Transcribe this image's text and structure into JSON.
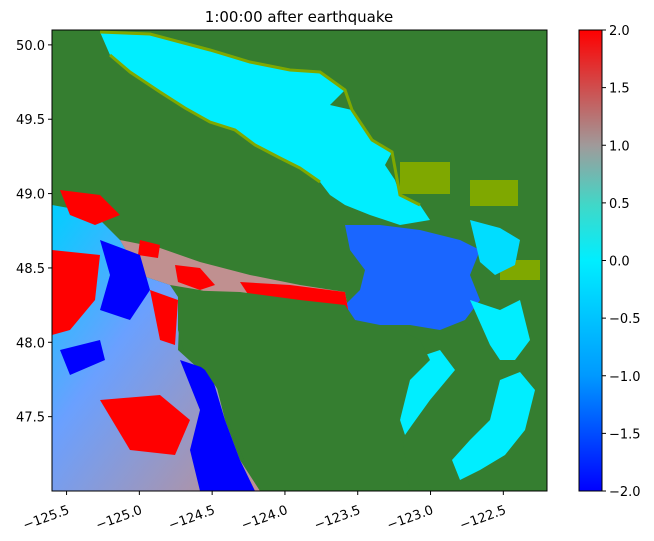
{
  "chart_data": {
    "type": "heatmap",
    "title": "1:00:00 after earthquake",
    "xlabel": "",
    "ylabel": "",
    "xlim": [
      -125.6,
      -122.2
    ],
    "ylim": [
      47.0,
      50.1
    ],
    "x_ticks": [
      -125.5,
      -125.0,
      -124.5,
      -124.0,
      -123.5,
      -123.0,
      -122.5
    ],
    "x_tick_labels": [
      "−125.5",
      "−125.0",
      "−124.5",
      "−124.0",
      "−123.5",
      "−123.0",
      "−122.5"
    ],
    "y_ticks": [
      47.5,
      48.0,
      48.5,
      49.0,
      49.5,
      50.0
    ],
    "y_tick_labels": [
      "47.5",
      "48.0",
      "48.5",
      "49.0",
      "49.5",
      "50.0"
    ],
    "grid": false,
    "colorbar": {
      "min": -2.0,
      "max": 2.0,
      "ticks": [
        -2.0,
        -1.5,
        -1.0,
        -0.5,
        0.0,
        0.5,
        1.0,
        1.5,
        2.0
      ],
      "tick_labels": [
        "−2.0",
        "−1.5",
        "−1.0",
        "−0.5",
        "0.0",
        "0.5",
        "1.0",
        "1.5",
        "2.0"
      ],
      "colors": [
        "#0000ff",
        "#00aaff",
        "#00eeff",
        "#40e0d0",
        "#999999",
        "#ff0000"
      ]
    },
    "colors": {
      "land": "#357e30",
      "shore": "#7fa800",
      "water_zero": "#00eeff",
      "positive": "#ff0000",
      "negative": "#0000ff"
    }
  }
}
